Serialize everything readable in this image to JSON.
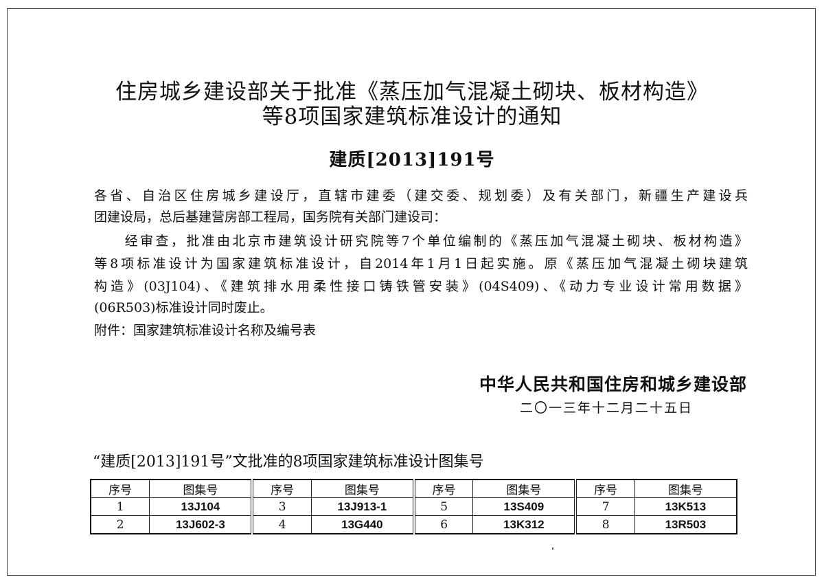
{
  "title_lines": [
    "住房城乡建设部关于批准《蒸压加气混凝土砌块、板材构造》",
    "等8项国家建筑标准设计的通知"
  ],
  "doc_number": "建质[2013]191号",
  "body_lines": [
    "各省、自治区住房城乡建设厅，直辖市建委（建交委、规划委）及有关部门，新疆生产建设兵",
    "团建设局，总后基建营房部工程局，国务院有关部门建设司：",
    "　　经审查，批准由北京市建筑设计研究院等7个单位编制的《蒸压加气混凝土砌块、板材构造》",
    "等8项标准设计为国家建筑标准设计，自2014年1月1日起实施。原《蒸压加气混凝土砌块建筑",
    "构造》(03J104)、《建筑排水用柔性接口铸铁管安装》(04S409)、《动力专业设计常用数据》",
    "(06R503)标准设计同时废止。",
    "附件：国家建筑标准设计名称及编号表"
  ],
  "issuer": "中华人民共和国住房和城乡建设部",
  "date": "二〇一三年十二月二十五日",
  "table": {
    "caption": "“建质[2013]191号”文批准的8项国家建筑标准设计图集号",
    "headers": [
      "序号",
      "图集号",
      "序号",
      "图集号",
      "序号",
      "图集号",
      "序号",
      "图集号"
    ],
    "rows": [
      [
        "1",
        "13J104",
        "3",
        "13J913-1",
        "5",
        "13S409",
        "7",
        "13K513"
      ],
      [
        "2",
        "13J602-3",
        "4",
        "13G440",
        "6",
        "13K312",
        "8",
        "13R503"
      ]
    ]
  }
}
